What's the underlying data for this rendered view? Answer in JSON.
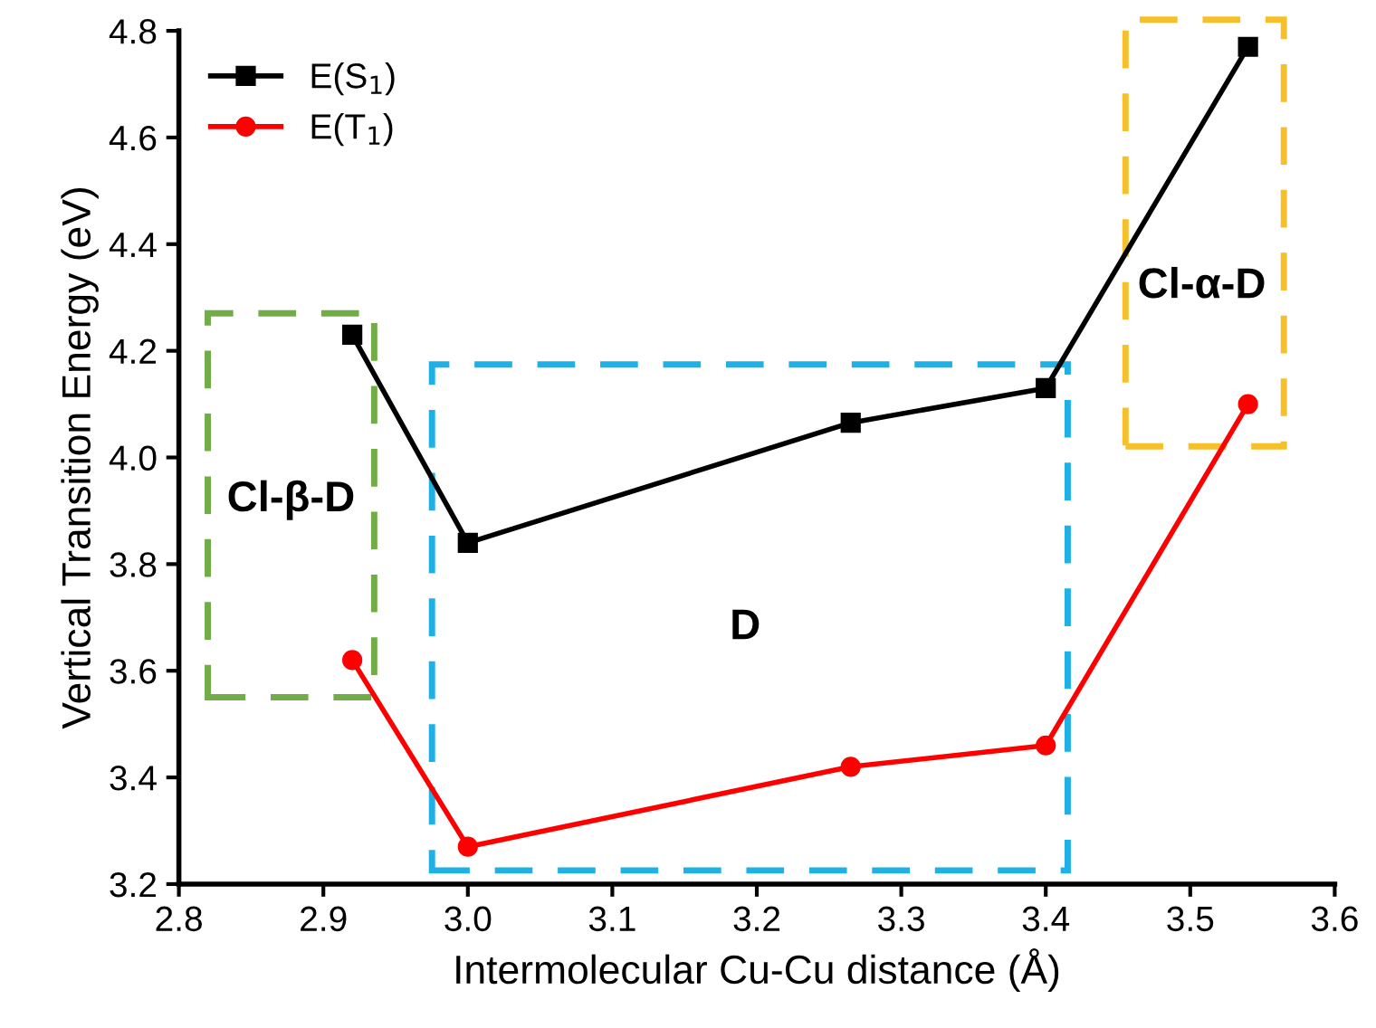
{
  "chart_data": {
    "type": "line",
    "xlabel": "Intermolecular Cu-Cu distance (Å)",
    "ylabel": "Vertical Transition Energy (eV)",
    "x": [
      2.92,
      3.0,
      3.265,
      3.4,
      3.54
    ],
    "series": [
      {
        "name": "E(S$_{1}$)",
        "color": "#000000",
        "marker": "square",
        "values": [
          4.23,
          3.84,
          4.065,
          4.13,
          4.77
        ]
      },
      {
        "name": "E(T$_{1}$)",
        "color": "#ff0000",
        "marker": "circle",
        "values": [
          3.62,
          3.27,
          3.42,
          3.46,
          4.1
        ]
      }
    ],
    "xlim": [
      2.8,
      3.6
    ],
    "xticks": [
      {
        "value": 2.8,
        "label": "2.8"
      },
      {
        "value": 2.9,
        "label": "2.9"
      },
      {
        "value": 3.0,
        "label": "3.0"
      },
      {
        "value": 3.1,
        "label": "3.1"
      },
      {
        "value": 3.2,
        "label": "3.2"
      },
      {
        "value": 3.3,
        "label": "3.3"
      },
      {
        "value": 3.4,
        "label": "3.4"
      },
      {
        "value": 3.5,
        "label": "3.5"
      },
      {
        "value": 3.6,
        "label": "3.6"
      }
    ],
    "ylim": [
      3.2,
      4.8
    ],
    "yticks": [
      {
        "value": 3.2,
        "label": "3.2"
      },
      {
        "value": 3.4,
        "label": "3.4"
      },
      {
        "value": 3.6,
        "label": "3.6"
      },
      {
        "value": 3.8,
        "label": "3.8"
      },
      {
        "value": 4.0,
        "label": "4.0"
      },
      {
        "value": 4.2,
        "label": "4.2"
      },
      {
        "value": 4.4,
        "label": "4.4"
      },
      {
        "value": 4.6,
        "label": "4.6"
      },
      {
        "value": 4.8,
        "label": "4.8"
      }
    ],
    "annotations": [
      "Cl-β-D",
      "D",
      "Cl-α-D"
    ],
    "grid": false,
    "legend": "top left",
    "line_style": "solid"
  }
}
